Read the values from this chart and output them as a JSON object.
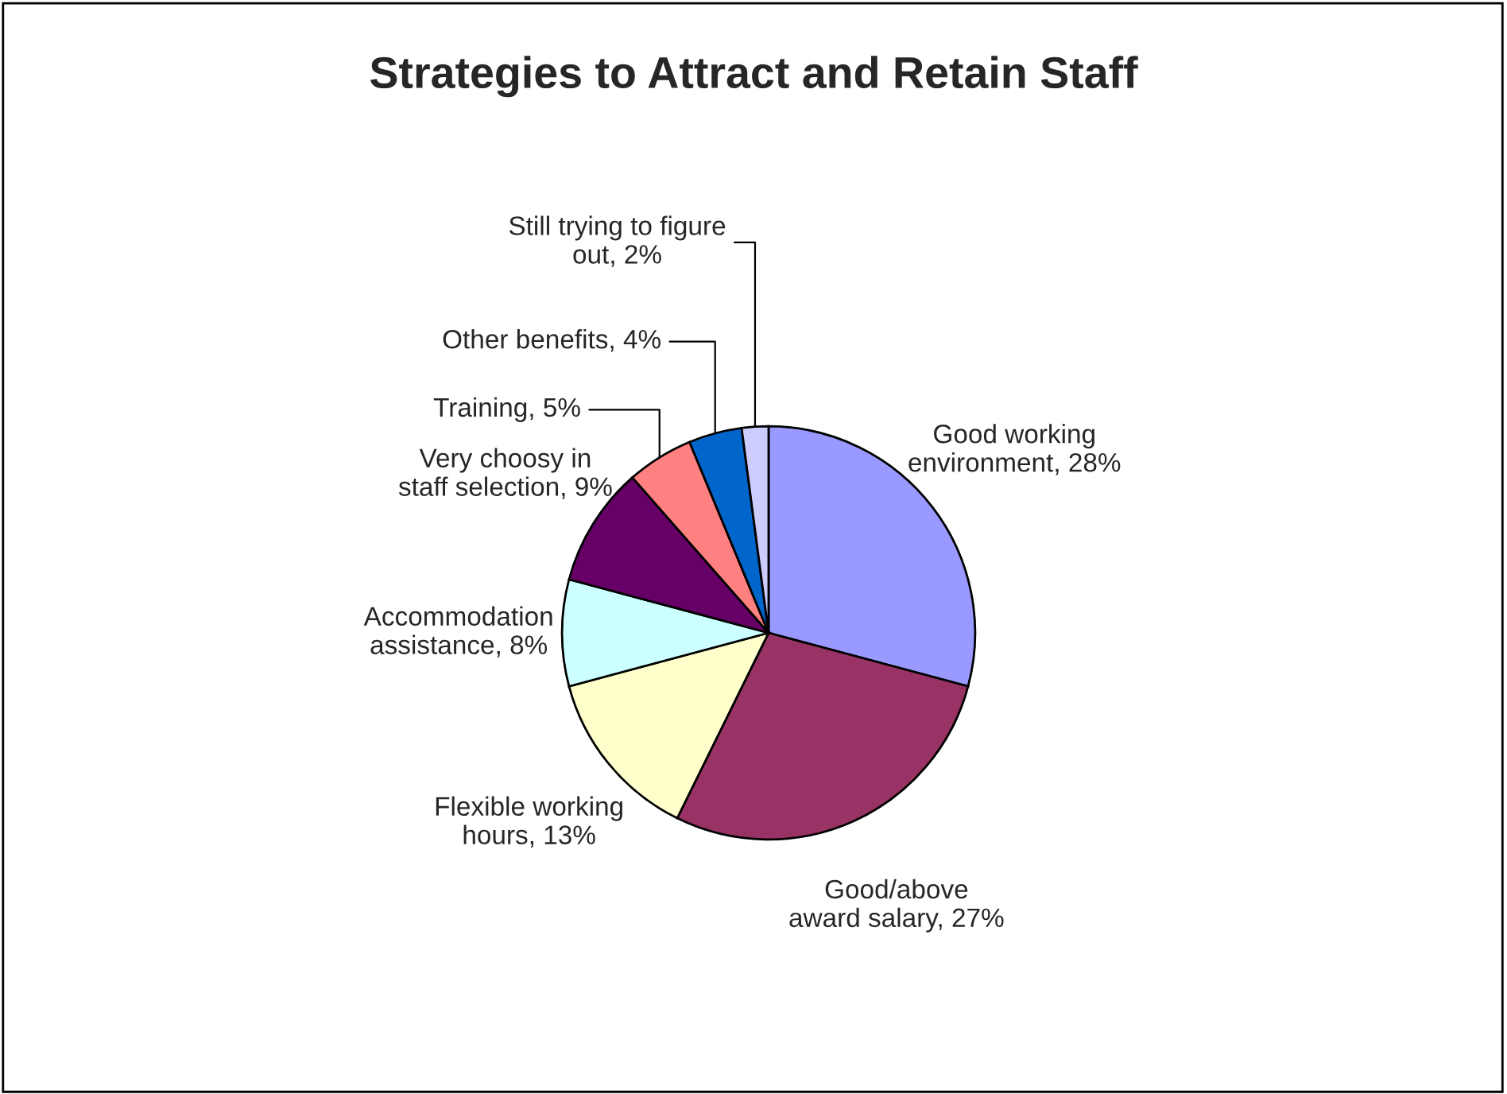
{
  "chart_data": {
    "type": "pie",
    "title": "Strategies to Attract and Retain Staff",
    "categories": [
      "Good working\nenvironment",
      "Good/above\naward salary",
      "Flexible working\nhours",
      "Accommodation\nassistance",
      "Very choosy in\nstaff selection",
      "Training",
      "Other benefits",
      "Still trying to figure\nout"
    ],
    "values": [
      28,
      27,
      13,
      8,
      9,
      5,
      4,
      2
    ],
    "value_labels": [
      "28%",
      "27%",
      "13%",
      "8%",
      "9%",
      "5%",
      "4%",
      "2%"
    ],
    "colors": [
      "#9999ff",
      "#993366",
      "#ffffcc",
      "#ccffff",
      "#660066",
      "#ff8080",
      "#0066cc",
      "#ccccff"
    ],
    "legend": false
  }
}
